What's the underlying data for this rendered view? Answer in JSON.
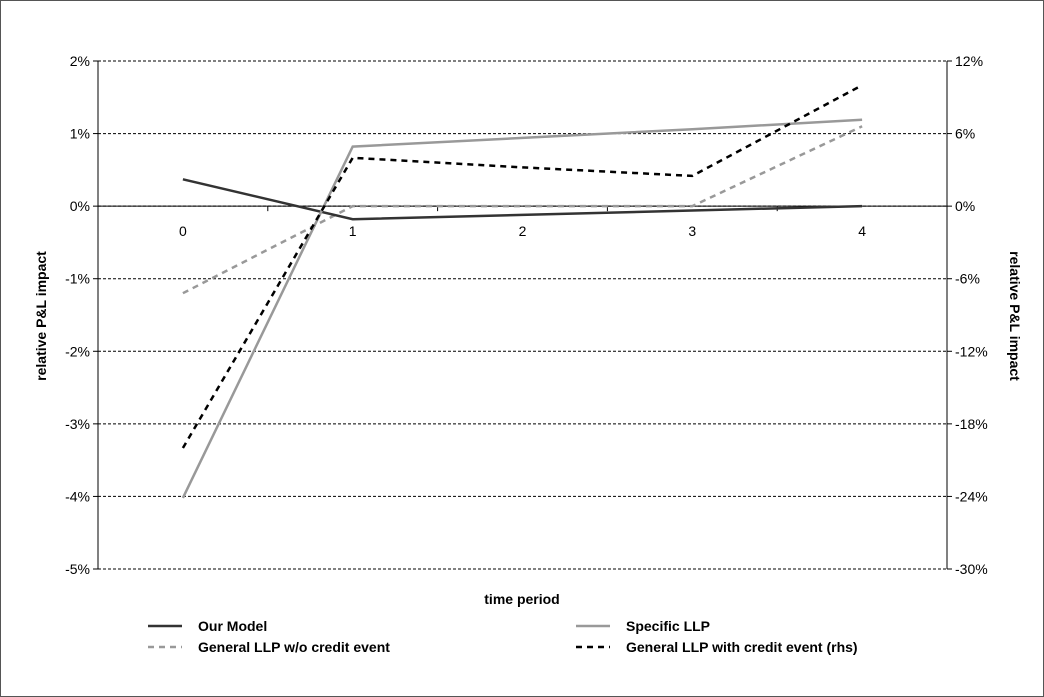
{
  "chart_data": {
    "type": "line",
    "title": "",
    "xlabel": "time period",
    "ylabel": "relative P&L impact",
    "y2label": "relative P&L impact",
    "x": [
      0,
      1,
      2,
      3,
      4
    ],
    "x_tick_labels": [
      "0",
      "1",
      "2",
      "3",
      "4"
    ],
    "ylim": [
      -0.05,
      0.02
    ],
    "y_ticks": [
      0.02,
      0.01,
      0.0,
      -0.01,
      -0.02,
      -0.03,
      -0.04,
      -0.05
    ],
    "y_tick_labels": [
      "2%",
      "1%",
      "0%",
      "-1%",
      "-2%",
      "-3%",
      "-4%",
      "-5%"
    ],
    "y2lim": [
      -0.3,
      0.12
    ],
    "y2_ticks": [
      0.12,
      0.06,
      0.0,
      -0.06,
      -0.12,
      -0.18,
      -0.24,
      -0.3
    ],
    "y2_tick_labels": [
      "12%",
      "6%",
      "0%",
      "-6%",
      "-12%",
      "-18%",
      "-24%",
      "-30%"
    ],
    "grid": "horizontal dashed",
    "legend_position": "bottom",
    "series": [
      {
        "name": "Our Model",
        "axis": "left",
        "color": "#333333",
        "style": "solid",
        "values": [
          0.0037,
          -0.0018,
          -0.0012,
          -0.0006,
          0.0
        ]
      },
      {
        "name": "Specific LLP",
        "axis": "left",
        "color": "#999999",
        "style": "solid",
        "values": [
          -0.0402,
          0.0082,
          0.0094,
          0.0106,
          0.0119
        ]
      },
      {
        "name": "General LLP w/o credit event",
        "axis": "left",
        "color": "#999999",
        "style": "dashed",
        "values": [
          -0.012,
          0.0,
          0.0,
          0.0,
          0.011
        ]
      },
      {
        "name": "General LLP with credit event (rhs)",
        "axis": "right",
        "color": "#000000",
        "style": "dashed",
        "values": [
          -0.2,
          0.04,
          0.032,
          0.025,
          0.1
        ]
      }
    ]
  }
}
